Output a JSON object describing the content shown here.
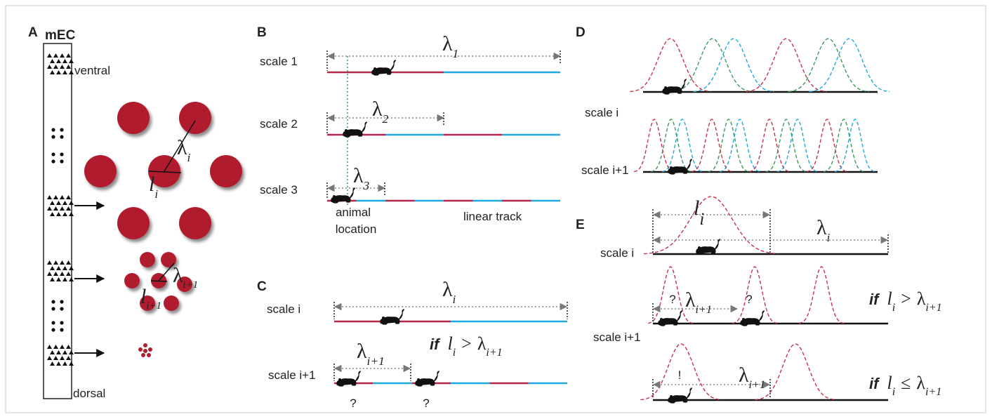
{
  "panel_labels": [
    "A",
    "B",
    "C",
    "D",
    "E"
  ],
  "panel_a": {
    "region": "mEC",
    "ventral": "ventral",
    "dorsal": "dorsal",
    "lambda": {
      "base": "λ",
      "sub": "i"
    },
    "l": {
      "base": "l",
      "sub": "i"
    },
    "lambda_next": {
      "base": "λ",
      "sub": "i+1"
    },
    "l_next": {
      "base": "l",
      "sub": "i+1"
    }
  },
  "panel_b": {
    "scales": [
      "scale 1",
      "scale 2",
      "scale 3"
    ],
    "lambdas": [
      {
        "base": "λ",
        "sub": "1"
      },
      {
        "base": "λ",
        "sub": "2"
      },
      {
        "base": "λ",
        "sub": "3"
      }
    ],
    "animal_location": [
      "animal",
      "location"
    ],
    "track": "linear track"
  },
  "panel_c": {
    "scales": [
      "scale i",
      "scale i+1"
    ],
    "lambda": {
      "base": "λ",
      "sub": "i"
    },
    "lambda_next": {
      "base": "λ",
      "sub": "i+1"
    },
    "condition": {
      "if": "if",
      "lhs": {
        "base": "l",
        "sub": "i"
      },
      "op": ">",
      "rhs": {
        "base": "λ",
        "sub": "i+1"
      }
    },
    "questions": [
      "?",
      "?"
    ]
  },
  "panel_d": {
    "scales": [
      "scale i",
      "scale i+1"
    ]
  },
  "panel_e": {
    "scales": [
      "scale i",
      "scale i+1"
    ],
    "l": {
      "base": "l",
      "sub": "i"
    },
    "lambda": {
      "base": "λ",
      "sub": "i"
    },
    "lambda_next_1": {
      "base": "λ",
      "sub": "i+1"
    },
    "questions": [
      "?",
      "?"
    ],
    "condition_1": {
      "if": "if",
      "lhs": {
        "base": "l",
        "sub": "i"
      },
      "op": ">",
      "rhs": {
        "base": "λ",
        "sub": "i+1"
      }
    },
    "exclaim": "!",
    "lambda_next_2": {
      "base": "λ",
      "sub": "i+1"
    },
    "condition_2": {
      "if": "if",
      "lhs": {
        "base": "l",
        "sub": "i"
      },
      "op": "≤",
      "rhs": {
        "base": "λ",
        "sub": "i+1"
      }
    }
  }
}
